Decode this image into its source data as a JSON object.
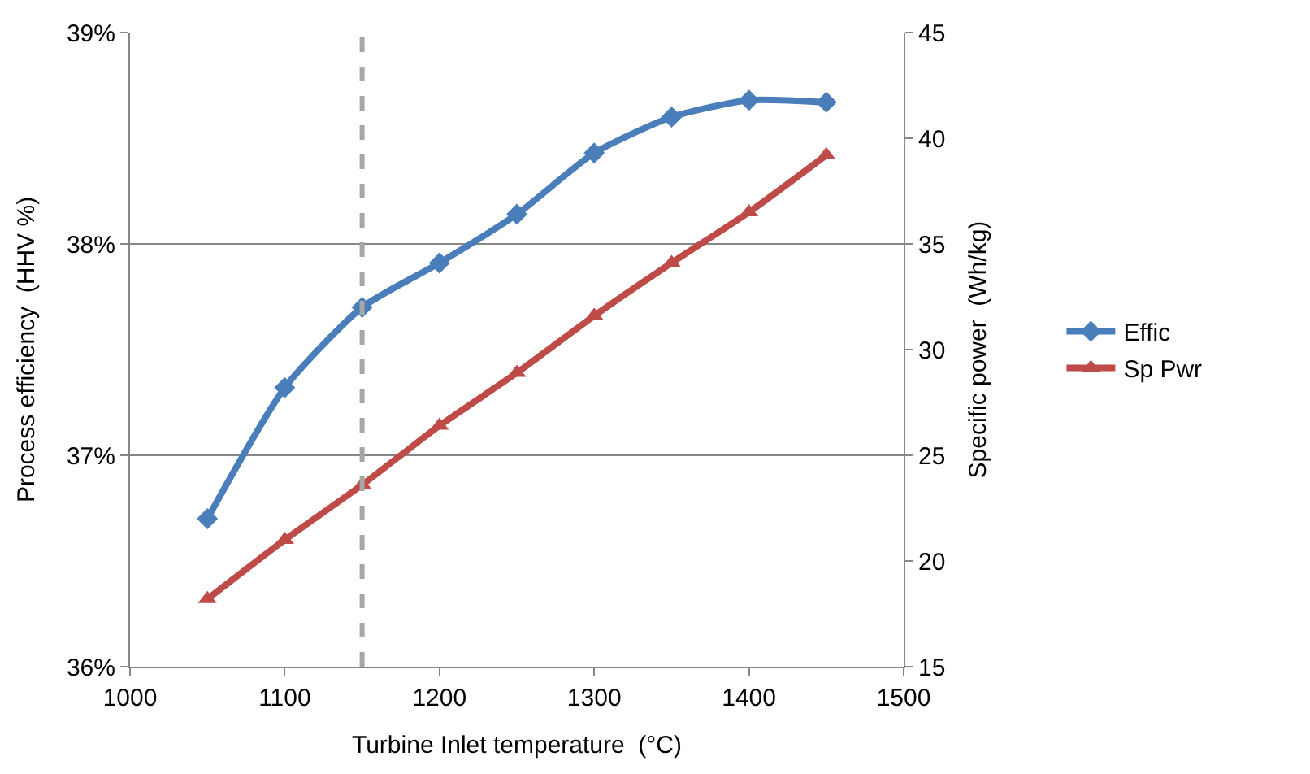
{
  "chart_data": {
    "type": "line",
    "xlabel": "Turbine Inlet temperature  (°C)",
    "ylabel": "Process efficiency  (HHV %)",
    "y2label": "Specific power  (Wh/kg)",
    "x": [
      1050,
      1100,
      1150,
      1200,
      1250,
      1300,
      1350,
      1400,
      1450
    ],
    "series": [
      {
        "name": "Effic",
        "color": "#4a7ebb",
        "marker": "diamond",
        "values": [
          36.7,
          37.32,
          37.7,
          37.91,
          38.14,
          38.43,
          38.6,
          38.68,
          38.67
        ]
      },
      {
        "name": "Sp Pwr",
        "color": "#be4b48",
        "marker": "triangle",
        "axis": "y2",
        "values": [
          18.2,
          21.0,
          23.6,
          26.4,
          28.9,
          31.6,
          34.1,
          36.5,
          39.2
        ]
      }
    ],
    "xlim": [
      1000,
      1500
    ],
    "xticks": [
      1000,
      1100,
      1200,
      1300,
      1400,
      1500
    ],
    "ylim": [
      36,
      39
    ],
    "yticks": [
      {
        "value": 36,
        "label": "36%"
      },
      {
        "value": 37,
        "label": "37%"
      },
      {
        "value": 38,
        "label": "38%"
      },
      {
        "value": 39,
        "label": "39%"
      }
    ],
    "y2lim": [
      15,
      45
    ],
    "y2ticks": [
      15,
      20,
      25,
      30,
      35,
      40,
      45
    ],
    "ref_lines": [
      {
        "axis": "x",
        "value": 1150,
        "color": "#a6a6a6",
        "line_style": "dashed"
      }
    ],
    "grid": "y",
    "legend": "right"
  }
}
